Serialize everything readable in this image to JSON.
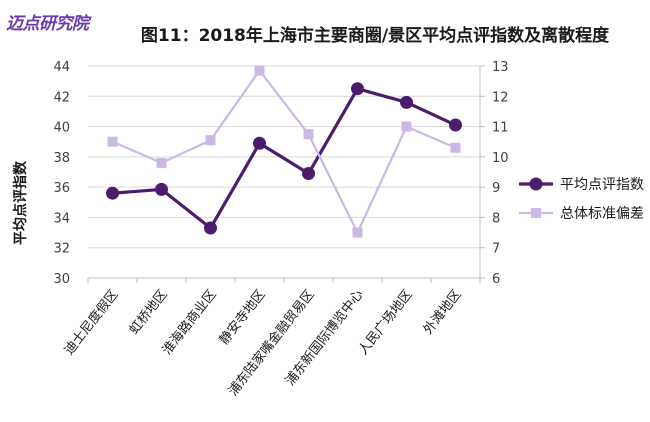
{
  "logo": {
    "text": "迈点研究院"
  },
  "chart_data": {
    "type": "line",
    "title": "图11：2018年上海市主要商圈/景区平均点评指数及离散程度",
    "ylabel": "平均点评指数",
    "categories": [
      "迪士尼度假区",
      "虹桥地区",
      "淮海路商业区",
      "静安寺地区",
      "浦东陆家嘴金融贸易区",
      "浦东新国际博览中心",
      "人民广场地区",
      "外滩地区"
    ],
    "ylim": [
      30,
      44
    ],
    "yticks": [
      30,
      32,
      34,
      36,
      38,
      40,
      42,
      44
    ],
    "y2lim": [
      6,
      13
    ],
    "y2ticks": [
      6,
      7,
      8,
      9,
      10,
      11,
      12,
      13
    ],
    "series": [
      {
        "name": "平均点评指数",
        "axis": "left",
        "color": "#4b1c6e",
        "marker": "circle",
        "values": [
          35.6,
          35.85,
          33.3,
          38.9,
          36.9,
          42.5,
          41.6,
          40.1
        ]
      },
      {
        "name": "总体标准偏差",
        "axis": "right",
        "color": "#cbb8e4",
        "marker": "square",
        "values": [
          10.5,
          9.8,
          10.55,
          12.85,
          10.75,
          7.5,
          11.0,
          10.3
        ]
      }
    ],
    "grid": true,
    "legend": "right"
  }
}
